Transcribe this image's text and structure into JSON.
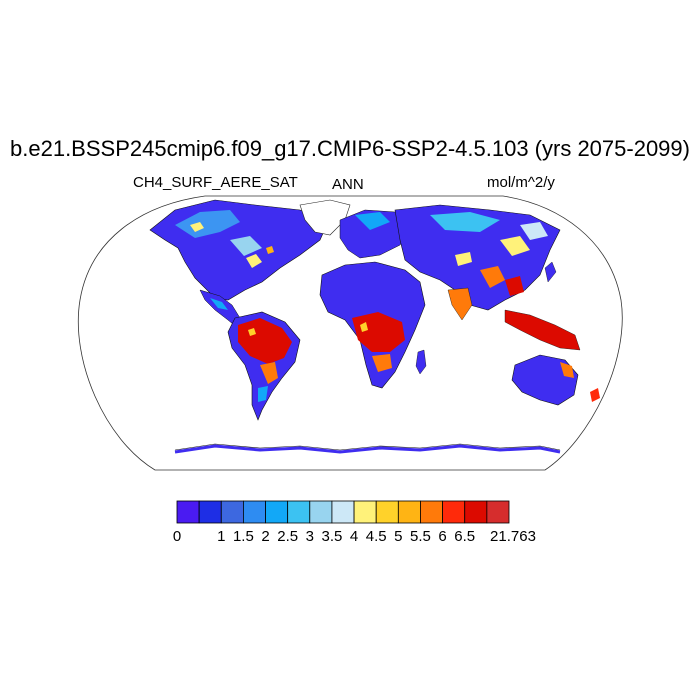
{
  "map": {
    "title": "b.e21.BSSP245cmip6.f09_g17.CMIP6-SSP2-4.5.103 (yrs 2075-2099)",
    "variable": "CH4_SURF_AERE_SAT",
    "season": "ANN",
    "units": "mol/m^2/y",
    "projection": "Robinson"
  },
  "colorbar": {
    "colors": [
      "#4a1bf2",
      "#1e2ee5",
      "#3d68e0",
      "#2e8cf2",
      "#12a8f7",
      "#3cc2f2",
      "#98d4ef",
      "#cde8f7",
      "#fff27a",
      "#ffd22a",
      "#ffb414",
      "#ff7a0a",
      "#ff2a0a",
      "#dc0a00",
      "#d62d2d"
    ],
    "labels": [
      "0",
      "1",
      "1.5",
      "2",
      "2.5",
      "3",
      "3.5",
      "4",
      "4.5",
      "5",
      "5.5",
      "6",
      "6.5",
      "21.763"
    ]
  }
}
